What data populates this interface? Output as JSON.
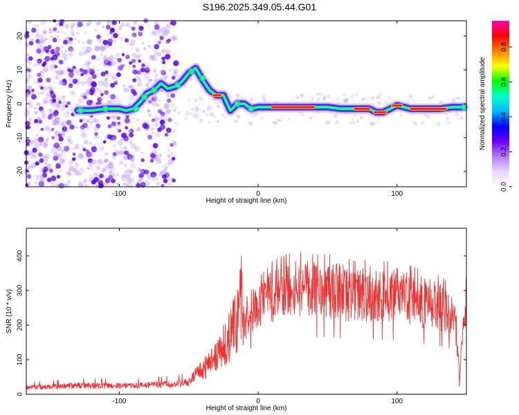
{
  "title": "S196.2025.349.05.44.G01",
  "chart_data": [
    {
      "type": "heatmap",
      "xlabel": "Height of straight line (km)",
      "ylabel": "Frequency (Hz)",
      "xlim": [
        -167,
        150
      ],
      "ylim": [
        -24.5,
        24.5
      ],
      "xticks": [
        -100,
        0,
        100
      ],
      "yticks": [
        -20,
        -10,
        0,
        10,
        20
      ],
      "grid": false,
      "ridge": {
        "x": [
          -130,
          -120,
          -110,
          -100,
          -95,
          -90,
          -85,
          -80,
          -75,
          -70,
          -65,
          -60,
          -55,
          -50,
          -45,
          -40,
          -35,
          -30,
          -25,
          -20,
          -15,
          -10,
          -5,
          0,
          10,
          20,
          30,
          40,
          50,
          60,
          70,
          80,
          85,
          90,
          95,
          100,
          110,
          120,
          130,
          140,
          148
        ],
        "y": [
          -2,
          -2,
          -1.5,
          -1.5,
          -2,
          -1.5,
          0.5,
          3,
          4,
          6,
          4.5,
          5,
          6.5,
          9,
          10.5,
          7,
          4,
          2.5,
          2.5,
          -2,
          0,
          0,
          -1.5,
          -1,
          -1,
          -1,
          -1,
          -1,
          -1,
          -1.5,
          -1.5,
          -1.5,
          -2.5,
          -2.5,
          -1.5,
          -0.5,
          -1.5,
          -1.5,
          -1.5,
          -1,
          -1
        ]
      },
      "colorbar": {
        "label": "Normalized spectral amplitude",
        "range": [
          0,
          0.95
        ],
        "ticks": [
          "0.0",
          "0.2",
          "0.4",
          "0.6",
          "0.8"
        ],
        "colors": [
          "#ffffff",
          "#e8d6ff",
          "#b37bff",
          "#6a00ff",
          "#0000ff",
          "#00b7ff",
          "#00ffc8",
          "#00ff00",
          "#ffff00",
          "#ff8000",
          "#ff0000",
          "#ff00b4"
        ]
      }
    },
    {
      "type": "line",
      "xlabel": "Height of straight line (km)",
      "ylabel": "SNR (10 * v/v)",
      "xlim": [
        -167,
        150
      ],
      "ylim": [
        0,
        480
      ],
      "xticks": [
        -100,
        0,
        100
      ],
      "yticks": [
        0,
        100,
        200,
        300,
        400
      ],
      "grid": false,
      "series": [
        {
          "color": "#ee3333",
          "x": [
            -167,
            -150,
            -130,
            -110,
            -90,
            -70,
            -60,
            -50,
            -45,
            -40,
            -35,
            -30,
            -25,
            -20,
            -15,
            -12,
            -10,
            -8,
            -5,
            0,
            5,
            10,
            20,
            30,
            40,
            50,
            60,
            70,
            80,
            90,
            100,
            110,
            120,
            130,
            140,
            143,
            145,
            148,
            150
          ],
          "y": [
            20,
            22,
            25,
            25,
            25,
            28,
            30,
            35,
            60,
            75,
            90,
            110,
            140,
            170,
            220,
            300,
            150,
            230,
            240,
            250,
            265,
            285,
            300,
            305,
            300,
            300,
            295,
            285,
            290,
            285,
            285,
            275,
            265,
            255,
            235,
            180,
            40,
            200,
            280
          ]
        }
      ]
    }
  ]
}
